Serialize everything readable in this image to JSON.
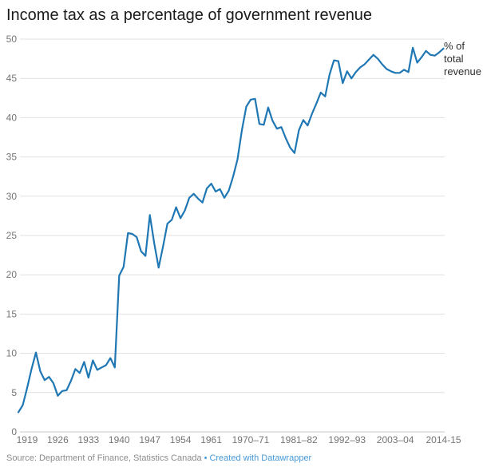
{
  "header": {
    "title": "Income tax as a percentage of government revenue"
  },
  "chart_data": {
    "type": "line",
    "title": "Income tax as a percentage of government revenue",
    "xlabel": "",
    "ylabel": "% of total revenue",
    "annotation": "% of\ntotal\nrevenue",
    "ylim": [
      0,
      50
    ],
    "grid": "horizontal",
    "legend_position": "none",
    "line_color": "#1f77b4",
    "grid_color": "#e1e1e1",
    "baseline_color": "#c9c9c9",
    "axis_label_color": "#757575",
    "y_ticks": [
      0,
      5,
      10,
      15,
      20,
      25,
      30,
      35,
      40,
      45,
      50
    ],
    "x_ticks": [
      "1919",
      "1926",
      "1933",
      "1940",
      "1947",
      "1954",
      "1961",
      "1970–71",
      "1981–82",
      "1992–93",
      "2003–04",
      "2014-15"
    ],
    "categories": [
      "1917",
      "1918",
      "1919",
      "1920",
      "1921",
      "1922",
      "1923",
      "1924",
      "1925",
      "1926",
      "1927",
      "1928",
      "1929",
      "1930",
      "1931",
      "1932",
      "1933",
      "1934",
      "1935",
      "1936",
      "1937",
      "1938",
      "1939",
      "1940",
      "1941",
      "1942",
      "1943",
      "1944",
      "1945",
      "1946",
      "1947",
      "1948",
      "1949",
      "1950",
      "1951",
      "1952",
      "1953",
      "1954",
      "1955",
      "1956",
      "1957",
      "1958",
      "1959",
      "1960",
      "1961",
      "1962",
      "1963",
      "1964",
      "1965",
      "1966–67",
      "1967–68",
      "1968–69",
      "1969–70",
      "1970–71",
      "1971–72",
      "1972–73",
      "1973–74",
      "1974–75",
      "1975–76",
      "1976–77",
      "1977–78",
      "1978–79",
      "1979–80",
      "1980–81",
      "1981–82",
      "1982–83",
      "1983–84",
      "1984–85",
      "1985–86",
      "1986–87",
      "1987–88",
      "1988–89",
      "1989–90",
      "1990–91",
      "1991–92",
      "1992–93",
      "1993–94",
      "1994–95",
      "1995–96",
      "1996–97",
      "1997–98",
      "1998–99",
      "1999–00",
      "2000–01",
      "2001–02",
      "2002–03",
      "2003–04",
      "2004–05",
      "2005–06",
      "2006–07",
      "2007–08",
      "2008–09",
      "2009–10",
      "2010–11",
      "2011–12",
      "2012–13",
      "2013–14",
      "2014-15"
    ],
    "values": [
      2.5,
      3.4,
      5.6,
      8.0,
      10.1,
      7.7,
      6.6,
      7.0,
      6.2,
      4.6,
      5.2,
      5.3,
      6.5,
      8.0,
      7.5,
      8.9,
      6.9,
      9.1,
      7.9,
      8.2,
      8.5,
      9.4,
      8.2,
      19.9,
      21.0,
      25.3,
      25.2,
      24.8,
      23.0,
      22.4,
      27.6,
      24.0,
      20.9,
      23.6,
      26.5,
      27.0,
      28.6,
      27.2,
      28.2,
      29.8,
      30.3,
      29.7,
      29.2,
      31.0,
      31.6,
      30.6,
      30.9,
      29.8,
      30.7,
      32.5,
      34.7,
      38.4,
      41.4,
      42.3,
      42.4,
      39.2,
      39.1,
      41.3,
      39.6,
      38.6,
      38.8,
      37.4,
      36.2,
      35.5,
      38.4,
      39.7,
      39.0,
      40.5,
      41.8,
      43.2,
      42.7,
      45.5,
      47.3,
      47.2,
      44.4,
      45.9,
      45.0,
      45.8,
      46.4,
      46.8,
      47.4,
      48.0,
      47.5,
      46.8,
      46.2,
      45.9,
      45.7,
      45.7,
      46.1,
      45.8,
      48.9,
      47.0,
      47.7,
      48.5,
      48.0,
      47.9,
      48.3,
      48.8
    ]
  },
  "footer": {
    "source": "Source: Department of Finance, Statistics Canada",
    "separator": "•",
    "link_label": "Created with Datawrapper"
  }
}
